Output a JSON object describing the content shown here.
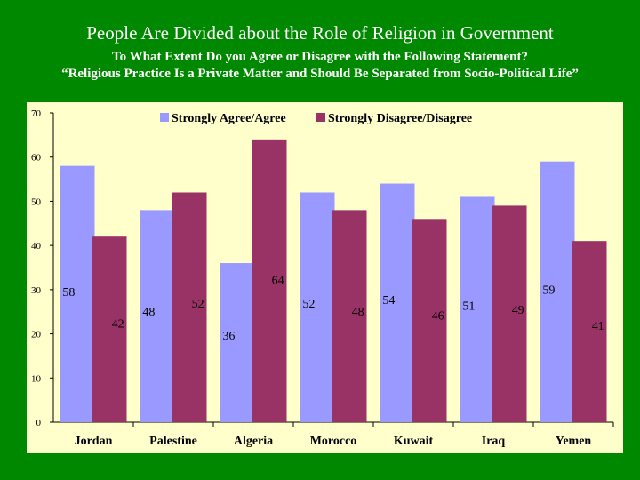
{
  "slide": {
    "title": "People Are Divided about the Role of Religion in Government",
    "subtitle_line1": "To What Extent Do you Agree or Disagree with the Following Statement?",
    "subtitle_line2": "“Religious Practice Is a Private Matter and Should Be Separated from Socio-Political Life”"
  },
  "chart_data": {
    "type": "bar",
    "title": "",
    "xlabel": "",
    "ylabel": "",
    "categories": [
      "Jordan",
      "Palestine",
      "Algeria",
      "Morocco",
      "Kuwait",
      "Iraq",
      "Yemen"
    ],
    "series": [
      {
        "name": "Strongly Agree/Agree",
        "color": "#9999ff",
        "values": [
          58,
          48,
          36,
          52,
          54,
          51,
          59
        ]
      },
      {
        "name": "Strongly Disagree/Disagree",
        "color": "#993366",
        "values": [
          42,
          52,
          64,
          48,
          46,
          49,
          41
        ]
      }
    ],
    "ylim": [
      0,
      70
    ],
    "yticks": [
      0,
      10,
      20,
      30,
      40,
      50,
      60,
      70
    ],
    "grid": false,
    "legend_position": "top",
    "data_labels_shown": true
  }
}
